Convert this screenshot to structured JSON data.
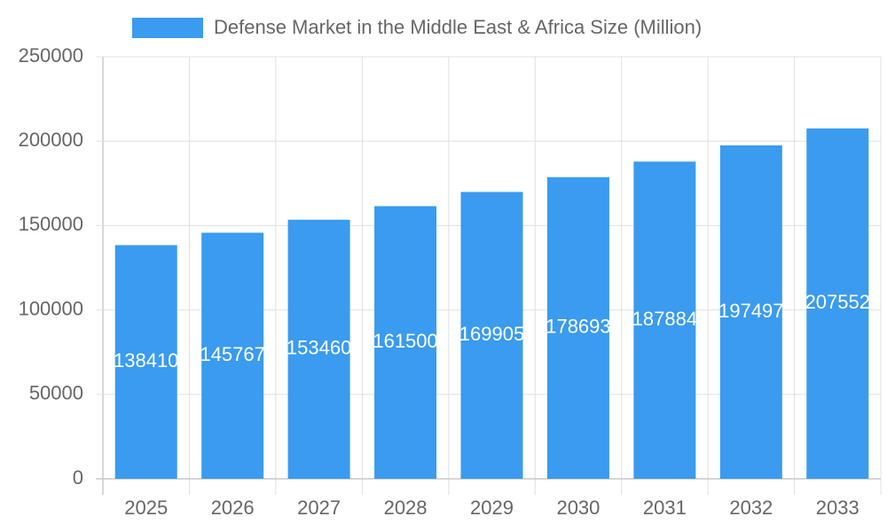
{
  "chart_data": {
    "type": "bar",
    "categories": [
      "2025",
      "2026",
      "2027",
      "2028",
      "2029",
      "2030",
      "2031",
      "2032",
      "2033"
    ],
    "series": [
      {
        "name": "Defense Market in the Middle East & Africa Size (Million)",
        "color": "#3a9bef",
        "values": [
          138410,
          145767,
          153460,
          161500,
          169905,
          178693,
          187884,
          197497,
          207552
        ]
      }
    ],
    "ylim": [
      0,
      250000
    ],
    "yticks": [
      0,
      50000,
      100000,
      150000,
      200000,
      250000
    ],
    "grid": true,
    "legend": "top"
  }
}
